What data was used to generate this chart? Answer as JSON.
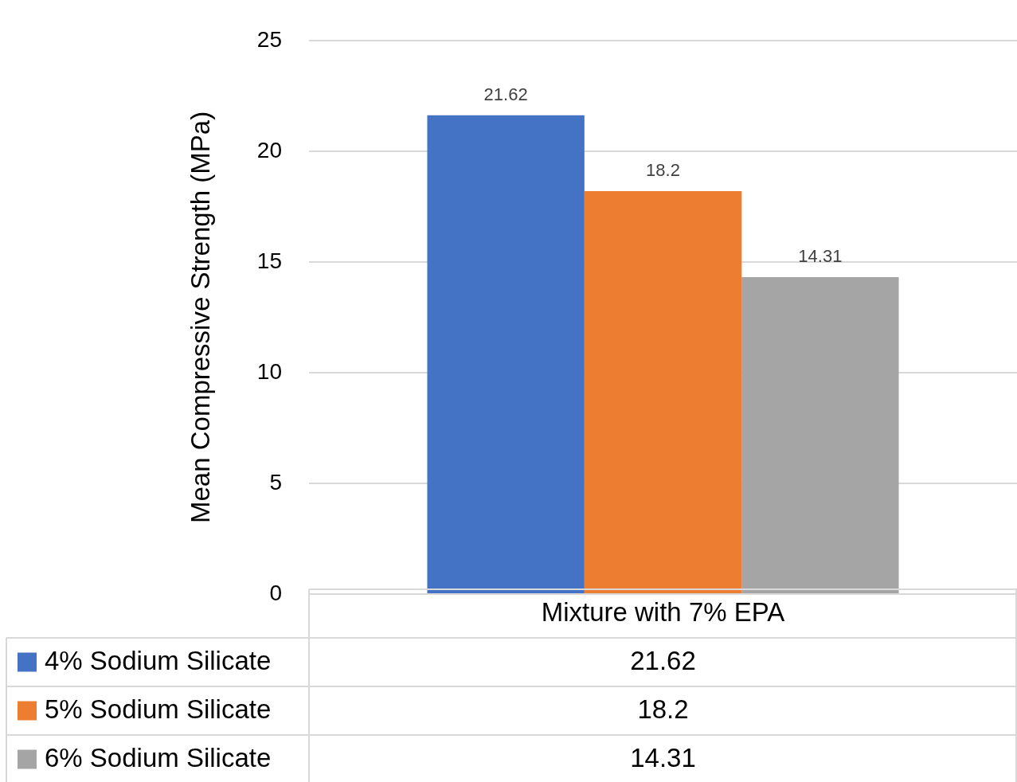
{
  "chart_data": {
    "type": "bar",
    "ylabel": "Mean Compressive Strength (MPa)",
    "categories": [
      "Mixture with 7% EPA"
    ],
    "series": [
      {
        "name": "4% Sodium Silicate",
        "color": "#4472c4",
        "values": [
          21.62
        ],
        "value_labels": [
          "21.62"
        ]
      },
      {
        "name": "5% Sodium Silicate",
        "color": "#ed7d31",
        "values": [
          18.2
        ],
        "value_labels": [
          "18.2"
        ]
      },
      {
        "name": "6% Sodium Silicate",
        "color": "#a5a5a5",
        "values": [
          14.31
        ],
        "value_labels": [
          "14.31"
        ]
      }
    ],
    "ylim": [
      0,
      25
    ],
    "yticks": [
      0,
      5,
      10,
      15,
      20,
      25
    ],
    "grid": "y",
    "legend": "bottom"
  }
}
